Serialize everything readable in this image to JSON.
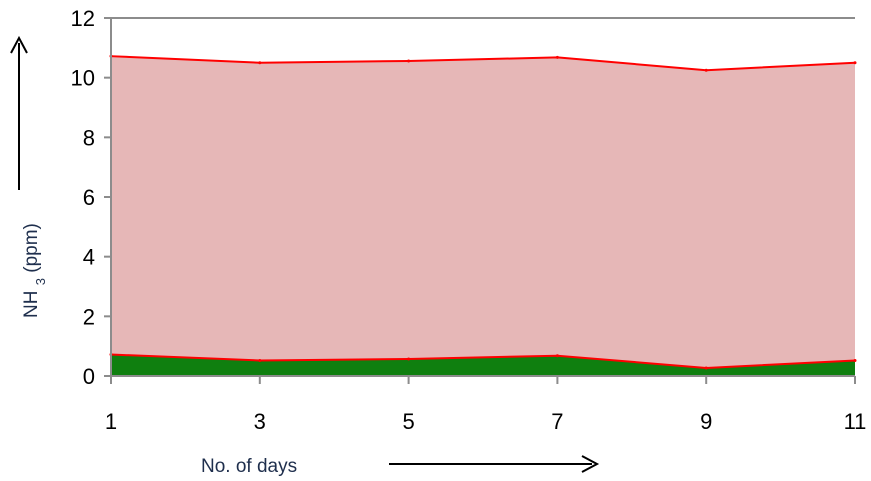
{
  "chart_data": {
    "type": "area",
    "title": "",
    "xlabel": "No. of  days",
    "ylabel": {
      "prefix": "NH",
      "subscript": "3",
      "suffix": " (ppm)"
    },
    "x": [
      1,
      3,
      5,
      7,
      9,
      11
    ],
    "xlim": [
      1,
      11
    ],
    "ylim": [
      0,
      12
    ],
    "yticks": [
      0,
      2,
      4,
      6,
      8,
      10,
      12
    ],
    "grid": false,
    "legend": "none",
    "series": [
      {
        "values": [
          0.72,
          0.52,
          0.57,
          0.68,
          0.27,
          0.52
        ],
        "fill": "#0f7f0f",
        "stroke": "#ff0000"
      },
      {
        "values": [
          10.72,
          10.5,
          10.56,
          10.68,
          10.25,
          10.5
        ],
        "fill": "#e6b7b7",
        "stroke": "#ff0000"
      }
    ],
    "axis_color": "#8c8c8c",
    "arrow_color": "#000000"
  }
}
